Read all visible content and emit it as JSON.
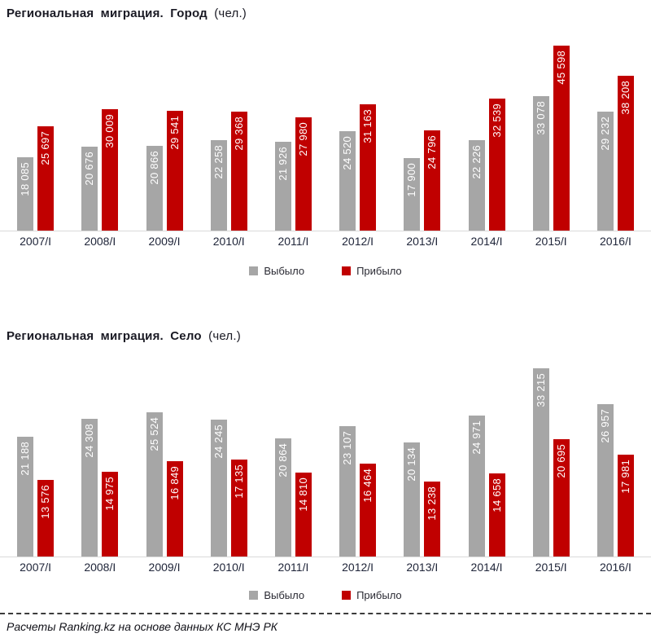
{
  "chart_data": [
    {
      "type": "bar",
      "title": "Региональная миграция. Город (чел.)",
      "title_bold": "Региональная миграция. Город",
      "title_suffix": "(чел.)",
      "categories": [
        "2007/I",
        "2008/I",
        "2009/I",
        "2010/I",
        "2011/I",
        "2012/I",
        "2013/I",
        "2014/I",
        "2015/I",
        "2016/I"
      ],
      "series": [
        {
          "name": "Выбыло",
          "color": "#a6a6a6",
          "values": [
            18085,
            20676,
            20866,
            22258,
            21926,
            24520,
            17900,
            22226,
            33078,
            29232
          ]
        },
        {
          "name": "Прибыло",
          "color": "#c00000",
          "values": [
            25697,
            30009,
            29541,
            29368,
            27980,
            31163,
            24796,
            32539,
            45598,
            38208
          ]
        }
      ],
      "ylim": [
        0,
        48000
      ],
      "grid": false,
      "legend_position": "bottom",
      "value_labels": "inside-end, rotated 90° bottom-to-top, white"
    },
    {
      "type": "bar",
      "title": "Региональная миграция. Село (чел.)",
      "title_bold": "Региональная миграция. Село",
      "title_suffix": "(чел.)",
      "categories": [
        "2007/I",
        "2008/I",
        "2009/I",
        "2010/I",
        "2011/I",
        "2012/I",
        "2013/I",
        "2014/I",
        "2015/I",
        "2016/I"
      ],
      "series": [
        {
          "name": "Выбыло",
          "color": "#a6a6a6",
          "values": [
            21188,
            24308,
            25524,
            24245,
            20864,
            23107,
            20134,
            24971,
            33215,
            26957
          ]
        },
        {
          "name": "Прибыло",
          "color": "#c00000",
          "values": [
            13576,
            14975,
            16849,
            17135,
            14810,
            16464,
            13238,
            14658,
            20695,
            17981
          ]
        }
      ],
      "ylim": [
        0,
        35000
      ],
      "grid": false,
      "legend_position": "bottom",
      "value_labels": "inside-end, rotated 90° bottom-to-top, white"
    }
  ],
  "footer": {
    "text": "Расчеты Ranking.kz на основе данных КС МНЭ РК"
  },
  "colors": {
    "bar_outflow": "#a6a6a6",
    "bar_inflow": "#c00000",
    "axis_line": "#d9d9d9",
    "title_text": "#1a1a24",
    "axis_label_text": "#20263a"
  }
}
